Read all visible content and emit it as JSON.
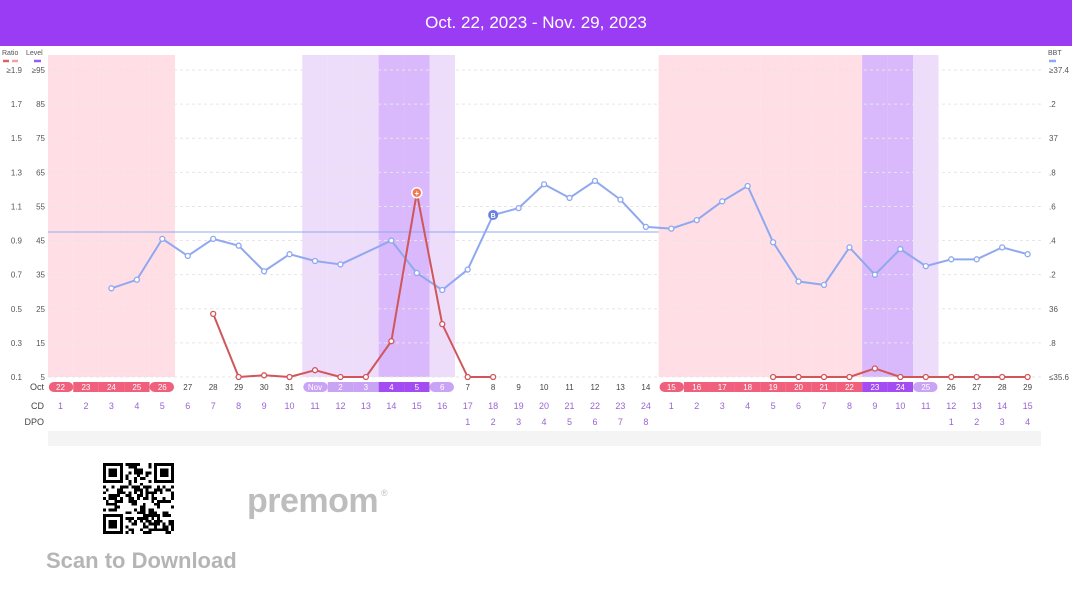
{
  "header": {
    "date_range": "Oct. 22, 2023 - Nov. 29, 2023"
  },
  "colors": {
    "header_bg": "#9b3cf5",
    "bbt_line": "#8fa8f0",
    "lh_line": "#d0565a",
    "period_band": "#ffdfe5",
    "fertile_light": "#eedcfb",
    "fertile_dark": "#d9b8fb",
    "period_pill": "#f05f7c",
    "fertile_pill": "#c9a4f5",
    "peak_pill": "#a24cf2",
    "ovulation_marker": "#6b7fe0",
    "peak_marker": "#ef7a52"
  },
  "legend": {
    "left_ratio": "Ratio",
    "left_level": "Level",
    "right_bbt": "BBT"
  },
  "y_axes": {
    "ratio_ticks": [
      "≥1.9",
      "1.7",
      "1.5",
      "1.3",
      "1.1",
      "0.9",
      "0.7",
      "0.5",
      "0.3",
      "0.1"
    ],
    "level_ticks": [
      "≥95",
      "85",
      "75",
      "65",
      "55",
      "45",
      "35",
      "25",
      "15",
      "5"
    ],
    "bbt_ticks": [
      "≥37.4",
      ".2",
      "37",
      ".8",
      ".6",
      ".4",
      ".2",
      "36",
      ".8",
      "≤35.6"
    ]
  },
  "row_labels": {
    "date_month": "Oct",
    "cd": "CD",
    "dpo": "DPO"
  },
  "date_labels": [
    "22",
    "23",
    "24",
    "25",
    "26",
    "27",
    "28",
    "29",
    "30",
    "31",
    "Nov",
    "2",
    "3",
    "4",
    "5",
    "6",
    "7",
    "8",
    "9",
    "10",
    "11",
    "12",
    "13",
    "14",
    "15",
    "16",
    "17",
    "18",
    "19",
    "20",
    "21",
    "22",
    "23",
    "24",
    "25",
    "26",
    "27",
    "28",
    "29"
  ],
  "day_types": [
    "period",
    "period",
    "period",
    "period",
    "period",
    "none",
    "none",
    "none",
    "none",
    "none",
    "fertile",
    "fertile",
    "fertile",
    "peak",
    "peak",
    "fertile",
    "none",
    "none",
    "none",
    "none",
    "none",
    "none",
    "none",
    "none",
    "period",
    "period",
    "period",
    "period",
    "period",
    "period",
    "period",
    "period",
    "peak",
    "peak",
    "fertile",
    "none",
    "none",
    "none",
    "none"
  ],
  "cd_labels": [
    "1",
    "2",
    "3",
    "4",
    "5",
    "6",
    "7",
    "8",
    "9",
    "10",
    "11",
    "12",
    "13",
    "14",
    "15",
    "16",
    "17",
    "18",
    "19",
    "20",
    "21",
    "22",
    "23",
    "24",
    "1",
    "2",
    "3",
    "4",
    "5",
    "6",
    "7",
    "8",
    "9",
    "10",
    "11",
    "12",
    "13",
    "14",
    "15"
  ],
  "dpo_labels": [
    "",
    "",
    "",
    "",
    "",
    "",
    "",
    "",
    "",
    "",
    "",
    "",
    "",
    "",
    "",
    "",
    "1",
    "2",
    "3",
    "4",
    "5",
    "6",
    "7",
    "8",
    "",
    "",
    "",
    "",
    "",
    "",
    "",
    "",
    "",
    "",
    "",
    "1",
    "2",
    "3",
    "4"
  ],
  "chart_data": {
    "type": "line",
    "x": [
      "Oct 22",
      "Oct 23",
      "Oct 24",
      "Oct 25",
      "Oct 26",
      "Oct 27",
      "Oct 28",
      "Oct 29",
      "Oct 30",
      "Oct 31",
      "Nov 1",
      "Nov 2",
      "Nov 3",
      "Nov 4",
      "Nov 5",
      "Nov 6",
      "Nov 7",
      "Nov 8",
      "Nov 9",
      "Nov 10",
      "Nov 11",
      "Nov 12",
      "Nov 13",
      "Nov 14",
      "Nov 15",
      "Nov 16",
      "Nov 17",
      "Nov 18",
      "Nov 19",
      "Nov 20",
      "Nov 21",
      "Nov 22",
      "Nov 23",
      "Nov 24",
      "Nov 25",
      "Nov 26",
      "Nov 27",
      "Nov 28",
      "Nov 29"
    ],
    "series": [
      {
        "axis": "bbt",
        "values": [
          null,
          null,
          36.12,
          36.17,
          36.41,
          36.31,
          36.41,
          36.37,
          36.22,
          36.32,
          36.28,
          36.26,
          null,
          36.4,
          36.21,
          36.11,
          36.23,
          36.55,
          36.59,
          36.73,
          36.65,
          36.75,
          36.64,
          36.48,
          36.47,
          36.52,
          36.63,
          36.72,
          36.39,
          36.16,
          36.14,
          36.36,
          36.2,
          36.35,
          36.25,
          36.29,
          36.29,
          36.36,
          36.32
        ]
      },
      {
        "axis": "level",
        "values": [
          null,
          null,
          null,
          null,
          null,
          null,
          23.5,
          5,
          5.5,
          5,
          7,
          5,
          5,
          15.5,
          59,
          20.5,
          5,
          5,
          null,
          null,
          null,
          null,
          null,
          null,
          null,
          null,
          null,
          null,
          5,
          5,
          5,
          5,
          7.5,
          5,
          5,
          5,
          5,
          5,
          5
        ]
      }
    ],
    "coverline_bbt": 36.45,
    "ovulation_day": "Nov 8",
    "peak_day": "Nov 5",
    "bbt_range": [
      35.6,
      37.4
    ],
    "level_range": [
      5,
      95
    ],
    "ratio_range": [
      0.1,
      1.9
    ]
  },
  "footer": {
    "scan_text": "Scan to Download",
    "brand": "premom",
    "brand_mark": "®"
  }
}
